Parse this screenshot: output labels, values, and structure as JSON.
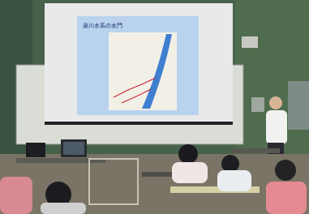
{
  "slide": {
    "title": "泉川水系の水門"
  }
}
